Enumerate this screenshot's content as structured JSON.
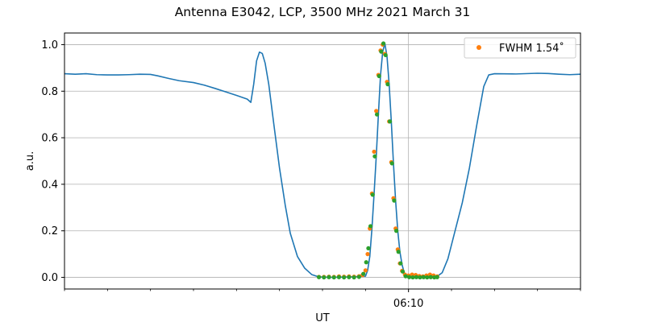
{
  "chart_data": {
    "type": "line",
    "title": "Antenna E3042, LCP, 3500 MHz 2021 March 31",
    "xlabel": "UT",
    "ylabel": "a.u.",
    "xlim": [
      "06:02:00",
      "06:14:00"
    ],
    "ylim": [
      -0.05,
      1.05
    ],
    "y_ticks": [
      "0.0",
      "0.2",
      "0.4",
      "0.6",
      "0.8",
      "1.0"
    ],
    "x_tick_labels": [
      {
        "time": "06:10:00",
        "label": "06:10"
      }
    ],
    "x_minor_ticks": [
      "06:02:00",
      "06:03:00",
      "06:04:00",
      "06:05:00",
      "06:06:00",
      "06:07:00",
      "06:08:00",
      "06:09:00",
      "06:11:00",
      "06:12:00",
      "06:13:00",
      "06:14:00"
    ],
    "grid": true,
    "legend": {
      "position": "top-right",
      "entries": [
        {
          "label": "FWHM 1.54$^\\circ$",
          "display": "FWHM 1.54˚",
          "color": "#ff7f0e"
        }
      ]
    },
    "series": [
      {
        "style": "line",
        "color": "#1f77b4",
        "points": [
          [
            "06:02:00",
            0.875
          ],
          [
            "06:02:15",
            0.873
          ],
          [
            "06:02:30",
            0.875
          ],
          [
            "06:02:45",
            0.871
          ],
          [
            "06:03:00",
            0.87
          ],
          [
            "06:03:15",
            0.87
          ],
          [
            "06:03:30",
            0.871
          ],
          [
            "06:03:45",
            0.873
          ],
          [
            "06:04:00",
            0.872
          ],
          [
            "06:04:10",
            0.866
          ],
          [
            "06:04:25",
            0.855
          ],
          [
            "06:04:40",
            0.845
          ],
          [
            "06:05:00",
            0.837
          ],
          [
            "06:05:15",
            0.826
          ],
          [
            "06:05:30",
            0.812
          ],
          [
            "06:05:45",
            0.797
          ],
          [
            "06:06:00",
            0.782
          ],
          [
            "06:06:15",
            0.766
          ],
          [
            "06:06:20",
            0.752
          ],
          [
            "06:06:24",
            0.83
          ],
          [
            "06:06:28",
            0.93
          ],
          [
            "06:06:32",
            0.968
          ],
          [
            "06:06:36",
            0.962
          ],
          [
            "06:06:40",
            0.92
          ],
          [
            "06:06:45",
            0.83
          ],
          [
            "06:06:52",
            0.66
          ],
          [
            "06:07:00",
            0.47
          ],
          [
            "06:07:08",
            0.31
          ],
          [
            "06:07:15",
            0.19
          ],
          [
            "06:07:25",
            0.09
          ],
          [
            "06:07:35",
            0.04
          ],
          [
            "06:07:45",
            0.012
          ],
          [
            "06:07:55",
            0.002
          ],
          [
            "06:08:10",
            0.0
          ],
          [
            "06:08:40",
            0.002
          ],
          [
            "06:09:00",
            0.005
          ],
          [
            "06:09:03",
            0.03
          ],
          [
            "06:09:06",
            0.09
          ],
          [
            "06:09:09",
            0.21
          ],
          [
            "06:09:12",
            0.36
          ],
          [
            "06:09:15",
            0.52
          ],
          [
            "06:09:18",
            0.7
          ],
          [
            "06:09:21",
            0.87
          ],
          [
            "06:09:24",
            0.97
          ],
          [
            "06:09:27",
            1.005
          ],
          [
            "06:09:30",
            0.95
          ],
          [
            "06:09:33",
            0.83
          ],
          [
            "06:09:36",
            0.67
          ],
          [
            "06:09:39",
            0.49
          ],
          [
            "06:09:42",
            0.33
          ],
          [
            "06:09:45",
            0.2
          ],
          [
            "06:09:48",
            0.11
          ],
          [
            "06:09:51",
            0.055
          ],
          [
            "06:09:54",
            0.02
          ],
          [
            "06:09:58",
            0.005
          ],
          [
            "06:10:15",
            0.0
          ],
          [
            "06:10:40",
            0.004
          ],
          [
            "06:10:47",
            0.02
          ],
          [
            "06:10:55",
            0.08
          ],
          [
            "06:11:05",
            0.2
          ],
          [
            "06:11:15",
            0.32
          ],
          [
            "06:11:25",
            0.47
          ],
          [
            "06:11:35",
            0.65
          ],
          [
            "06:11:45",
            0.82
          ],
          [
            "06:11:52",
            0.87
          ],
          [
            "06:12:00",
            0.875
          ],
          [
            "06:12:30",
            0.874
          ],
          [
            "06:13:00",
            0.877
          ],
          [
            "06:13:15",
            0.876
          ],
          [
            "06:13:30",
            0.873
          ],
          [
            "06:13:45",
            0.871
          ],
          [
            "06:14:00",
            0.873
          ]
        ]
      },
      {
        "name": "FWHM 1.54˚",
        "style": "markers",
        "color": "#ff7f0e",
        "points": [
          [
            "06:07:55",
            0.002
          ],
          [
            "06:08:02",
            0.002
          ],
          [
            "06:08:09",
            0.003
          ],
          [
            "06:08:16",
            0.002
          ],
          [
            "06:08:23",
            0.004
          ],
          [
            "06:08:30",
            0.003
          ],
          [
            "06:08:37",
            0.004
          ],
          [
            "06:08:44",
            0.003
          ],
          [
            "06:08:51",
            0.005
          ],
          [
            "06:08:56",
            0.01
          ],
          [
            "06:09:00",
            0.03
          ],
          [
            "06:09:03",
            0.1
          ],
          [
            "06:09:06",
            0.21
          ],
          [
            "06:09:09",
            0.36
          ],
          [
            "06:09:12",
            0.54
          ],
          [
            "06:09:15",
            0.715
          ],
          [
            "06:09:18",
            0.87
          ],
          [
            "06:09:21",
            0.975
          ],
          [
            "06:09:24",
            1.0
          ],
          [
            "06:09:27",
            0.96
          ],
          [
            "06:09:30",
            0.84
          ],
          [
            "06:09:33",
            0.67
          ],
          [
            "06:09:36",
            0.495
          ],
          [
            "06:09:39",
            0.34
          ],
          [
            "06:09:42",
            0.21
          ],
          [
            "06:09:45",
            0.12
          ],
          [
            "06:09:48",
            0.06
          ],
          [
            "06:09:51",
            0.028
          ],
          [
            "06:09:55",
            0.012
          ],
          [
            "06:10:00",
            0.008
          ],
          [
            "06:10:05",
            0.012
          ],
          [
            "06:10:10",
            0.01
          ],
          [
            "06:10:15",
            0.006
          ],
          [
            "06:10:20",
            0.004
          ],
          [
            "06:10:25",
            0.008
          ],
          [
            "06:10:30",
            0.012
          ],
          [
            "06:10:35",
            0.008
          ],
          [
            "06:10:40",
            0.004
          ]
        ]
      },
      {
        "style": "markers",
        "color": "#2ca02c",
        "points": [
          [
            "06:07:55",
            0.001
          ],
          [
            "06:08:02",
            0.0
          ],
          [
            "06:08:09",
            0.001
          ],
          [
            "06:08:16",
            0.0
          ],
          [
            "06:08:23",
            0.001
          ],
          [
            "06:08:30",
            0.0
          ],
          [
            "06:08:37",
            0.001
          ],
          [
            "06:08:44",
            0.0
          ],
          [
            "06:08:51",
            0.002
          ],
          [
            "06:08:57",
            0.015
          ],
          [
            "06:09:01",
            0.065
          ],
          [
            "06:09:04",
            0.125
          ],
          [
            "06:09:07",
            0.22
          ],
          [
            "06:09:10",
            0.355
          ],
          [
            "06:09:13",
            0.52
          ],
          [
            "06:09:16",
            0.7
          ],
          [
            "06:09:19",
            0.865
          ],
          [
            "06:09:22",
            0.97
          ],
          [
            "06:09:25",
            1.005
          ],
          [
            "06:09:28",
            0.955
          ],
          [
            "06:09:31",
            0.83
          ],
          [
            "06:09:34",
            0.67
          ],
          [
            "06:09:37",
            0.49
          ],
          [
            "06:09:40",
            0.33
          ],
          [
            "06:09:43",
            0.2
          ],
          [
            "06:09:46",
            0.11
          ],
          [
            "06:09:49",
            0.06
          ],
          [
            "06:09:52",
            0.025
          ],
          [
            "06:09:56",
            0.005
          ],
          [
            "06:10:01",
            0.001
          ],
          [
            "06:10:06",
            0.0
          ],
          [
            "06:10:11",
            0.001
          ],
          [
            "06:10:16",
            0.0
          ],
          [
            "06:10:21",
            0.001
          ],
          [
            "06:10:26",
            0.0
          ],
          [
            "06:10:31",
            0.001
          ],
          [
            "06:10:36",
            0.0
          ],
          [
            "06:10:40",
            0.001
          ]
        ]
      }
    ]
  }
}
